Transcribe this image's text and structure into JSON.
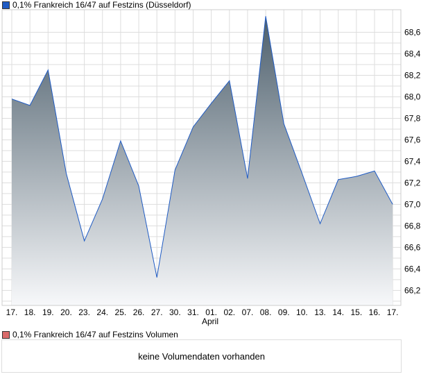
{
  "chart_data": {
    "type": "area",
    "title": "0,1% Frankreich 16/47 auf Festzins (Düsseldorf)",
    "categories": [
      "17.",
      "18.",
      "19.",
      "20.",
      "23.",
      "24.",
      "25.",
      "26.",
      "27.",
      "30.",
      "31.",
      "01.",
      "02.",
      "07.",
      "08.",
      "09.",
      "10.",
      "13.",
      "14.",
      "15.",
      "16.",
      "17."
    ],
    "month_label": "April",
    "values": [
      67.98,
      67.92,
      68.25,
      67.29,
      66.66,
      67.05,
      67.59,
      67.17,
      66.32,
      67.32,
      67.72,
      67.94,
      68.15,
      67.24,
      68.75,
      67.75,
      67.29,
      66.82,
      67.23,
      67.26,
      67.31,
      67.0
    ],
    "yticks": [
      "66,2",
      "66,4",
      "66,6",
      "66,8",
      "67,0",
      "67,2",
      "67,4",
      "67,6",
      "67,8",
      "68,0",
      "68,2",
      "68,4",
      "68,6"
    ],
    "ylim": [
      66.06,
      68.81
    ],
    "series_color": "#1f5bc4",
    "grid": true
  },
  "volume": {
    "legend": "0,1% Frankreich 16/47 auf Festzins Volumen",
    "message": "keine Volumendaten vorhanden",
    "color": "#d96b6b"
  }
}
